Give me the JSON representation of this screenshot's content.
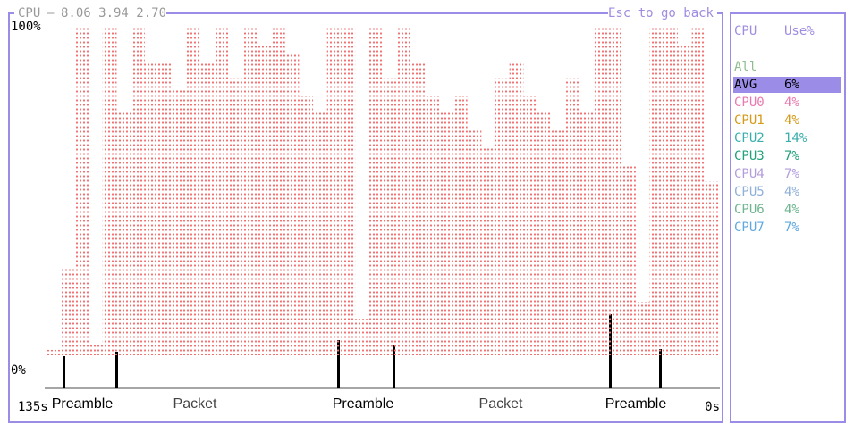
{
  "header": {
    "title": "CPU",
    "load": "8.06 3.94 2.70",
    "hint": "Esc to go back"
  },
  "chart_data": {
    "type": "bar",
    "color": "#f07070",
    "ylim": [
      0,
      100
    ],
    "yticks": [
      {
        "value": 0,
        "label": "0%"
      },
      {
        "value": 100,
        "label": "100%"
      }
    ],
    "xlim": [
      135,
      0
    ],
    "xticks": [
      {
        "value": 135,
        "label": "135s"
      },
      {
        "value": 0,
        "label": "0s"
      }
    ],
    "values": [
      6,
      30,
      100,
      8,
      100,
      75,
      100,
      90,
      90,
      82,
      100,
      90,
      100,
      85,
      100,
      95,
      100,
      92,
      80,
      75,
      100,
      100,
      15,
      100,
      85,
      100,
      90,
      80,
      75,
      80,
      70,
      65,
      85,
      90,
      80,
      75,
      70,
      85,
      75,
      100,
      100,
      60,
      20,
      100,
      100,
      95,
      100,
      55
    ],
    "annotations": [
      "Preamble",
      "Packet",
      "Preamble",
      "Packet",
      "Preamble"
    ]
  },
  "table": {
    "headers": [
      "CPU",
      "Use%"
    ],
    "group": "All",
    "rows": [
      {
        "name": "AVG",
        "use": "6%",
        "color": "#000000"
      },
      {
        "name": "CPU0",
        "use": "4%",
        "color": "#e87ab0"
      },
      {
        "name": "CPU1",
        "use": "4%",
        "color": "#d49a17"
      },
      {
        "name": "CPU2",
        "use": "14%",
        "color": "#3aaeae"
      },
      {
        "name": "CPU3",
        "use": "7%",
        "color": "#22a07a"
      },
      {
        "name": "CPU4",
        "use": "7%",
        "color": "#b39ddb"
      },
      {
        "name": "CPU5",
        "use": "4%",
        "color": "#8fb0d8"
      },
      {
        "name": "CPU6",
        "use": "4%",
        "color": "#6fb58f"
      },
      {
        "name": "CPU7",
        "use": "7%",
        "color": "#5fa8e0"
      }
    ]
  }
}
